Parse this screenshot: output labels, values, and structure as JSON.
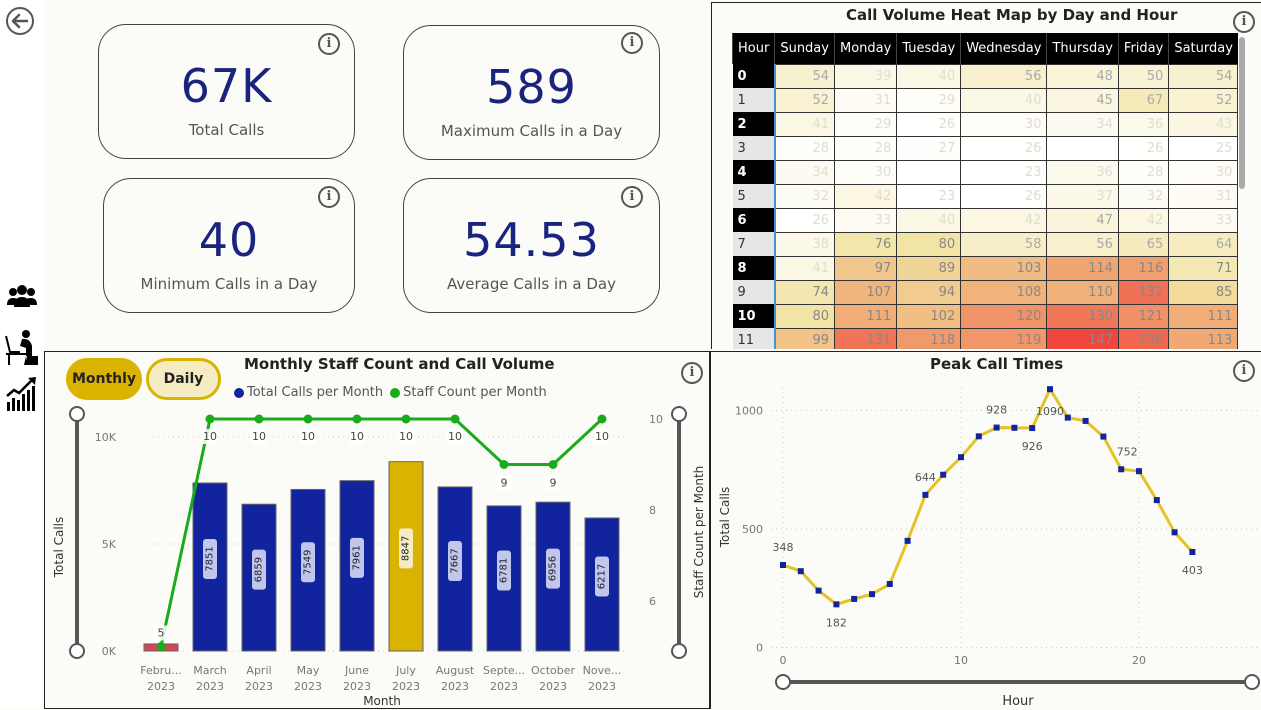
{
  "nav": {
    "back": "back-arrow",
    "icons": [
      "people-group-icon",
      "stressed-worker-icon",
      "growth-chart-icon"
    ]
  },
  "kpis": [
    {
      "value": "67K",
      "label": "Total Calls"
    },
    {
      "value": "589",
      "label": "Maximum Calls in a Day"
    },
    {
      "value": "40",
      "label": "Minimum Calls in a Day"
    },
    {
      "value": "54.53",
      "label": "Average Calls in a Day"
    }
  ],
  "info_glyph": "i",
  "heatmap": {
    "title": "Call Volume Heat Map by Day and Hour",
    "columns": [
      "Hour",
      "Sunday",
      "Monday",
      "Tuesday",
      "Wednesday",
      "Thursday",
      "Friday",
      "Saturday"
    ],
    "rows": [
      {
        "hour": "0",
        "values": [
          54,
          39,
          40,
          56,
          48,
          50,
          54
        ]
      },
      {
        "hour": "1",
        "values": [
          52,
          31,
          29,
          40,
          45,
          67,
          52
        ]
      },
      {
        "hour": "2",
        "values": [
          41,
          29,
          26,
          30,
          34,
          36,
          43
        ]
      },
      {
        "hour": "3",
        "values": [
          28,
          28,
          27,
          26,
          null,
          26,
          25
        ]
      },
      {
        "hour": "4",
        "values": [
          34,
          30,
          null,
          23,
          36,
          28,
          30
        ]
      },
      {
        "hour": "5",
        "values": [
          32,
          42,
          23,
          26,
          37,
          32,
          31
        ]
      },
      {
        "hour": "6",
        "values": [
          26,
          33,
          40,
          42,
          47,
          42,
          33
        ]
      },
      {
        "hour": "7",
        "values": [
          38,
          76,
          80,
          58,
          56,
          65,
          64
        ]
      },
      {
        "hour": "8",
        "values": [
          41,
          97,
          89,
          103,
          114,
          116,
          71
        ]
      },
      {
        "hour": "9",
        "values": [
          74,
          107,
          94,
          108,
          110,
          132,
          85
        ]
      },
      {
        "hour": "10",
        "values": [
          80,
          111,
          102,
          120,
          130,
          121,
          111
        ]
      },
      {
        "hour": "11",
        "values": [
          99,
          131,
          118,
          119,
          147,
          136,
          113
        ]
      }
    ]
  },
  "combo": {
    "toggles": [
      {
        "label": "Monthly",
        "active": true
      },
      {
        "label": "Daily",
        "active": false
      }
    ]
  },
  "chart_data": [
    {
      "type": "bar",
      "title": "Monthly Staff Count and Call Volume",
      "legend": [
        "Total Calls per Month",
        "Staff Count per Month"
      ],
      "legend_position": "top",
      "categories": [
        "Febru... 2023",
        "March 2023",
        "April 2023",
        "May 2023",
        "June 2023",
        "July 2023",
        "August 2023",
        "Septe... 2023",
        "October 2023",
        "Nove... 2023"
      ],
      "category_lines": [
        [
          "Febru...",
          "2023"
        ],
        [
          "March",
          "2023"
        ],
        [
          "April",
          "2023"
        ],
        [
          "May",
          "2023"
        ],
        [
          "June",
          "2023"
        ],
        [
          "July",
          "2023"
        ],
        [
          "August",
          "2023"
        ],
        [
          "Septe...",
          "2023"
        ],
        [
          "October",
          "2023"
        ],
        [
          "Nove...",
          "2023"
        ]
      ],
      "series": [
        {
          "name": "Total Calls per Month",
          "type": "bar",
          "axis": "left",
          "values": [
            330,
            7851,
            6859,
            7549,
            7961,
            8847,
            7667,
            6781,
            6956,
            6217
          ],
          "labels_shown": [
            false,
            true,
            true,
            true,
            true,
            true,
            true,
            true,
            true,
            true
          ]
        },
        {
          "name": "Staff Count per Month",
          "type": "line",
          "axis": "right",
          "values": [
            5,
            10,
            10,
            10,
            10,
            10,
            10,
            9,
            9,
            10
          ]
        }
      ],
      "bar_colors": {
        "default": "#12239e",
        "highlight": "#d9b300",
        "low": "#d64550"
      },
      "highlight_index": 5,
      "low_index": 0,
      "line_color": "#1aab1a",
      "xlabel": "Month",
      "ylabel": "Total Calls",
      "y2label": "Staff Count per Month",
      "ylim": [
        0,
        10000
      ],
      "yticks": [
        {
          "v": 0,
          "t": "0K"
        },
        {
          "v": 5000,
          "t": "5K"
        },
        {
          "v": 10000,
          "t": "10K"
        }
      ],
      "y2lim": [
        5,
        10
      ],
      "y2ticks": [
        6,
        8,
        10
      ]
    },
    {
      "type": "line",
      "title": "Peak Call Times",
      "x": [
        0,
        1,
        2,
        3,
        4,
        5,
        6,
        7,
        8,
        9,
        10,
        11,
        12,
        13,
        14,
        15,
        16,
        17,
        18,
        19,
        20,
        21,
        22,
        23
      ],
      "values": [
        348,
        322,
        240,
        182,
        205,
        225,
        268,
        450,
        644,
        729,
        803,
        891,
        928,
        927,
        926,
        1090,
        970,
        956,
        890,
        752,
        744,
        622,
        486,
        403
      ],
      "labeled_points": [
        0,
        3,
        8,
        12,
        14,
        15,
        19,
        23
      ],
      "line_color": "#e6c229",
      "marker_color": "#12239e",
      "xlabel": "Hour",
      "ylabel": "Total Calls",
      "xlim": [
        0,
        23
      ],
      "xticks": [
        0,
        10,
        20
      ],
      "ylim": [
        0,
        1100
      ],
      "yticks": [
        0,
        500,
        1000
      ],
      "grid": true
    }
  ]
}
